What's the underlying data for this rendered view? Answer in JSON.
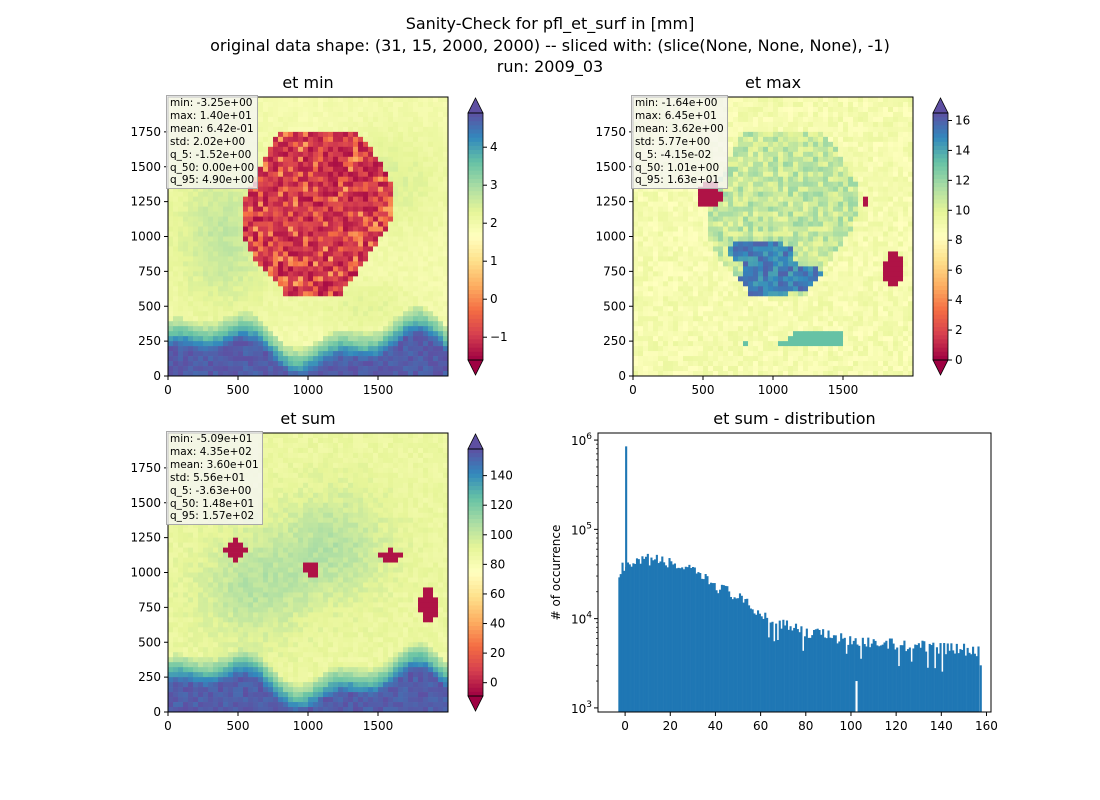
{
  "figure": {
    "title_lines": [
      "Sanity-Check for pfl_et_surf in [mm]",
      "original data shape: (31, 15, 2000, 2000) -- sliced with: (slice(None, None, None), -1)",
      "run: 2009_03"
    ]
  },
  "colormap": {
    "name": "Spectral",
    "stops": [
      "#9e0142",
      "#d53e4f",
      "#f46d43",
      "#fdae61",
      "#fee08b",
      "#ffffbf",
      "#e6f598",
      "#abdda4",
      "#66c2a5",
      "#3288bd",
      "#5e4fa2"
    ]
  },
  "panels": [
    {
      "id": "et-min",
      "title": "et min",
      "x_ticks": [
        "0",
        "500",
        "1000",
        "1500"
      ],
      "y_ticks": [
        "0",
        "250",
        "500",
        "750",
        "1000",
        "1250",
        "1500",
        "1750"
      ],
      "colorbar": {
        "min": -1.6,
        "max": 4.9,
        "ticks": [
          "−1",
          "0",
          "1",
          "2",
          "3",
          "4"
        ],
        "tick_values": [
          -1,
          0,
          1,
          2,
          3,
          4
        ]
      },
      "stats": [
        "min: -3.25e+00",
        "max: 1.40e+01",
        "mean: 6.42e-01",
        "std: 2.02e+00",
        "q_5: -1.52e+00",
        "q_50: 0.00e+00",
        "q_95: 4.90e+00"
      ]
    },
    {
      "id": "et-max",
      "title": "et max",
      "x_ticks": [
        "0",
        "500",
        "1000",
        "1500"
      ],
      "y_ticks": [
        "0",
        "250",
        "500",
        "750",
        "1000",
        "1250",
        "1500",
        "1750"
      ],
      "colorbar": {
        "min": 0,
        "max": 16.5,
        "ticks": [
          "0",
          "2",
          "4",
          "6",
          "8",
          "10",
          "12",
          "14",
          "16"
        ],
        "tick_values": [
          0,
          2,
          4,
          6,
          8,
          10,
          12,
          14,
          16
        ]
      },
      "stats": [
        "min: -1.64e+00",
        "max: 6.45e+01",
        "mean: 3.62e+00",
        "std: 5.77e+00",
        "q_5: -4.15e-02",
        "q_50: 1.01e+00",
        "q_95: 1.63e+01"
      ]
    },
    {
      "id": "et-sum",
      "title": "et sum",
      "x_ticks": [
        "0",
        "500",
        "1000",
        "1500"
      ],
      "y_ticks": [
        "0",
        "250",
        "500",
        "750",
        "1000",
        "1250",
        "1500",
        "1750"
      ],
      "colorbar": {
        "min": -9,
        "max": 158,
        "ticks": [
          "0",
          "20",
          "40",
          "60",
          "80",
          "100",
          "120",
          "140"
        ],
        "tick_values": [
          0,
          20,
          40,
          60,
          80,
          100,
          120,
          140
        ]
      },
      "stats": [
        "min: -5.09e+01",
        "max: 4.35e+02",
        "mean: 3.60e+01",
        "std: 5.56e+01",
        "q_5: -3.63e+00",
        "q_50: 1.48e+01",
        "q_95: 1.57e+02"
      ]
    }
  ],
  "chart_data": {
    "type": "bar",
    "title": "et sum - distribution",
    "xlabel": "",
    "ylabel": "# of occurrence",
    "yscale": "log",
    "xlim": [
      -12,
      162
    ],
    "ylim": [
      900,
      1200000
    ],
    "x_ticks": [
      0,
      20,
      40,
      60,
      80,
      100,
      120,
      140,
      160
    ],
    "y_ticks": [
      "10^3",
      "10^4",
      "10^5",
      "10^6"
    ],
    "bar_color": "#1f77b4",
    "bins": [
      {
        "x": -3,
        "count": 29000
      },
      {
        "x": 0,
        "count": 850000
      },
      {
        "x": 2,
        "count": 38000
      },
      {
        "x": 5,
        "count": 43000
      },
      {
        "x": 10,
        "count": 48000
      },
      {
        "x": 15,
        "count": 46000
      },
      {
        "x": 20,
        "count": 43000
      },
      {
        "x": 25,
        "count": 39000
      },
      {
        "x": 30,
        "count": 34000
      },
      {
        "x": 35,
        "count": 29000
      },
      {
        "x": 40,
        "count": 24000
      },
      {
        "x": 45,
        "count": 21000
      },
      {
        "x": 50,
        "count": 17500
      },
      {
        "x": 55,
        "count": 14000
      },
      {
        "x": 60,
        "count": 11500
      },
      {
        "x": 65,
        "count": 10000
      },
      {
        "x": 70,
        "count": 8800
      },
      {
        "x": 75,
        "count": 8000
      },
      {
        "x": 80,
        "count": 7500
      },
      {
        "x": 85,
        "count": 7000
      },
      {
        "x": 90,
        "count": 6600
      },
      {
        "x": 95,
        "count": 6300
      },
      {
        "x": 100,
        "count": 6000
      },
      {
        "x": 102,
        "count": 2000
      },
      {
        "x": 105,
        "count": 5800
      },
      {
        "x": 110,
        "count": 5600
      },
      {
        "x": 115,
        "count": 5400
      },
      {
        "x": 120,
        "count": 5300
      },
      {
        "x": 125,
        "count": 5200
      },
      {
        "x": 130,
        "count": 5100
      },
      {
        "x": 135,
        "count": 5000
      },
      {
        "x": 140,
        "count": 4900
      },
      {
        "x": 145,
        "count": 4800
      },
      {
        "x": 150,
        "count": 4700
      },
      {
        "x": 155,
        "count": 4500
      },
      {
        "x": 157,
        "count": 3000
      }
    ]
  }
}
